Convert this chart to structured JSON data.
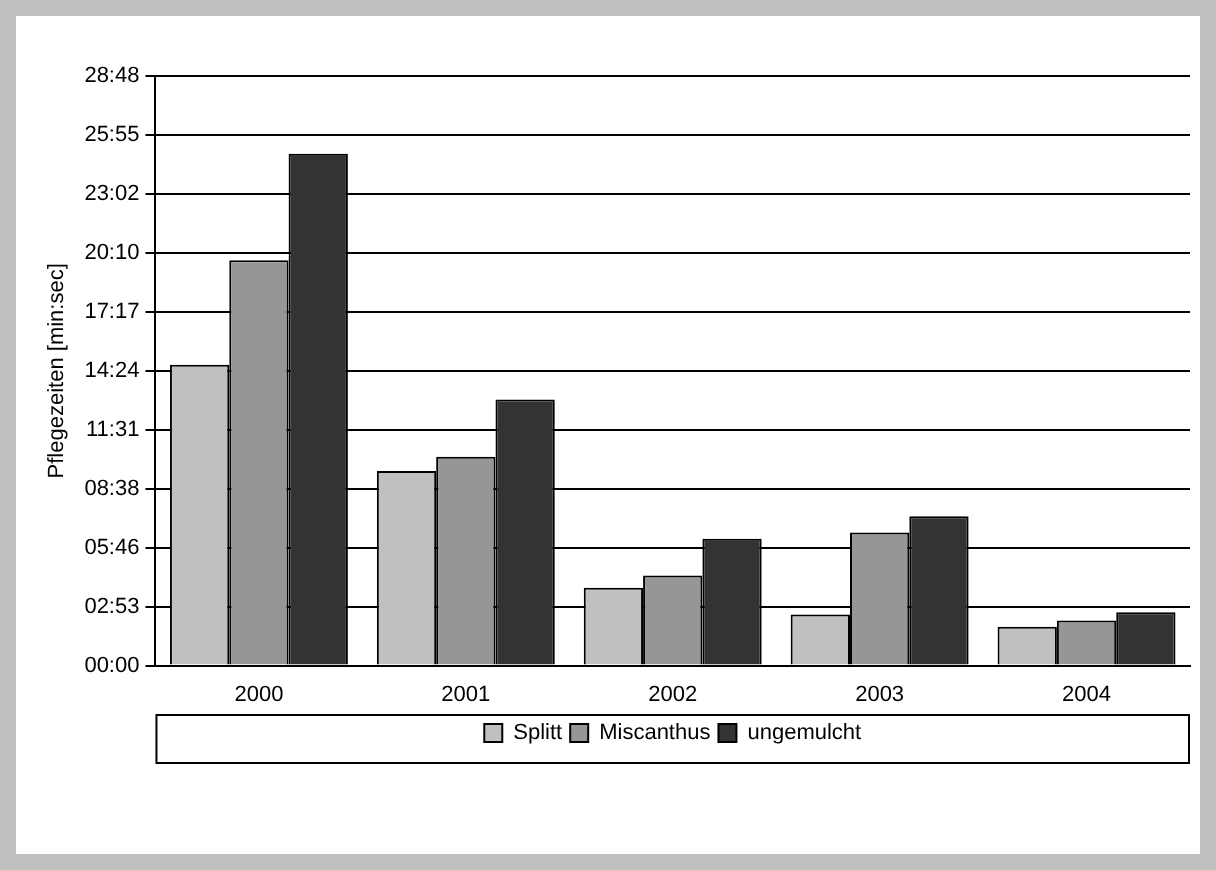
{
  "chart_data": {
    "type": "bar",
    "ylabel": "Pflegezeiten [min:sec]",
    "categories": [
      "2000",
      "2001",
      "2002",
      "2003",
      "2004"
    ],
    "series": [
      {
        "name": "Splitt",
        "color": "#c0c0c0",
        "values": [
          14.7,
          9.5,
          3.8,
          2.5,
          1.9
        ]
      },
      {
        "name": "Miscanthus",
        "color": "#969696",
        "values": [
          19.8,
          10.2,
          4.4,
          6.5,
          2.2
        ]
      },
      {
        "name": "ungemulcht",
        "color": "#333333",
        "values": [
          25.0,
          13.0,
          6.2,
          7.3,
          2.6
        ]
      }
    ],
    "ylim": [
      0,
      28.8
    ],
    "yticks": [
      {
        "value": 0,
        "label": "00:00"
      },
      {
        "value": 2.88,
        "label": "02:53"
      },
      {
        "value": 5.76,
        "label": "05:46"
      },
      {
        "value": 8.64,
        "label": "08:38"
      },
      {
        "value": 11.52,
        "label": "11:31"
      },
      {
        "value": 14.4,
        "label": "14:24"
      },
      {
        "value": 17.28,
        "label": "17:17"
      },
      {
        "value": 20.16,
        "label": "20:10"
      },
      {
        "value": 23.04,
        "label": "23:02"
      },
      {
        "value": 25.92,
        "label": "25:55"
      },
      {
        "value": 28.8,
        "label": "28:48"
      }
    ],
    "grid": "y",
    "legend": "bottom"
  }
}
